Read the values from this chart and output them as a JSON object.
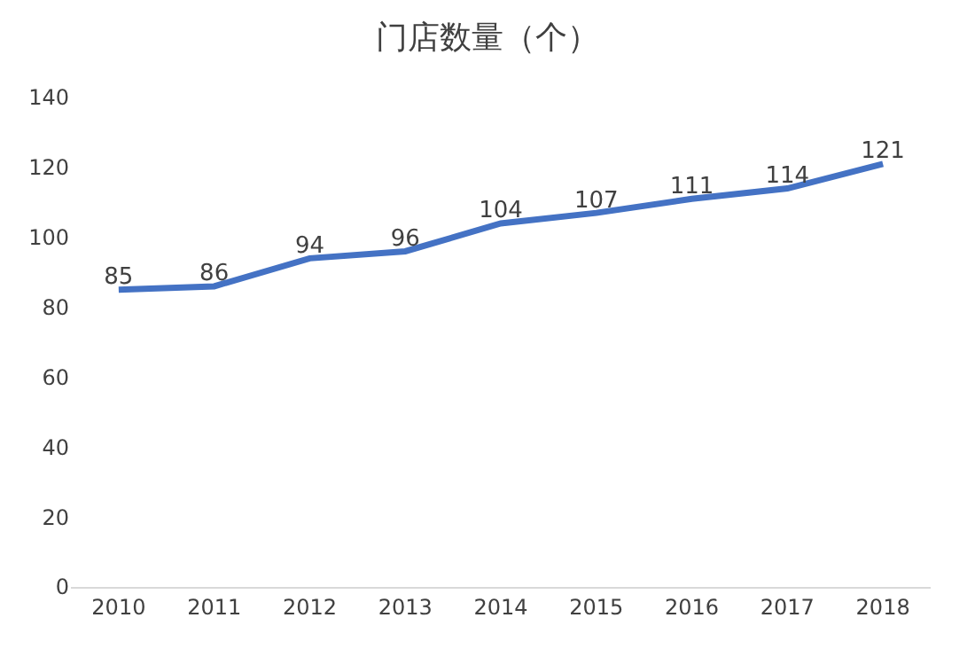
{
  "chart_data": {
    "type": "line",
    "title": "门店数量（个）",
    "categories": [
      "2010",
      "2011",
      "2012",
      "2013",
      "2014",
      "2015",
      "2016",
      "2017",
      "2018"
    ],
    "series": [
      {
        "color": "#4472c4",
        "values": [
          85,
          86,
          94,
          96,
          104,
          107,
          111,
          114,
          121
        ]
      }
    ],
    "ylim": [
      0,
      140
    ],
    "yticks": [
      0,
      20,
      40,
      60,
      80,
      100,
      120,
      140
    ],
    "data_labels": true,
    "grid": false,
    "legend": false,
    "marker": "none",
    "line_style": "solid"
  }
}
